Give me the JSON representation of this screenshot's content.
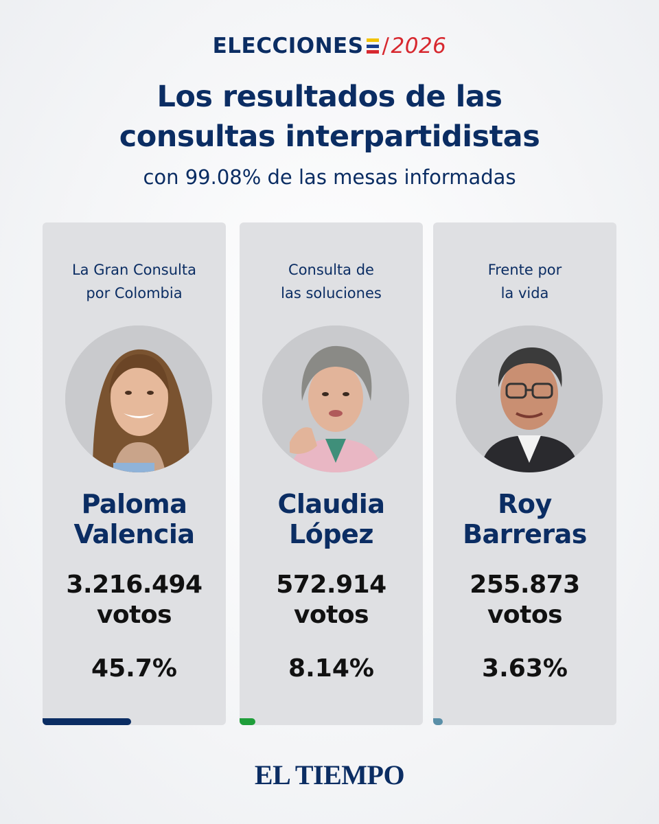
{
  "brand": {
    "word": "ELECCIONES",
    "slash": "/",
    "year": "2026",
    "flag_colors": [
      "#f2c300",
      "#1a3e8c",
      "#d7282f"
    ]
  },
  "header": {
    "title_line1": "Los resultados de las",
    "title_line2": "consultas interpartidistas",
    "subtitle": "con 99.08% de las mesas informadas"
  },
  "cards": [
    {
      "party_line1": "La Gran Consulta",
      "party_line2": "por Colombia",
      "name_line1": "Paloma",
      "name_line2": "Valencia",
      "votes": "3.216.494",
      "votes_unit": "votos",
      "percent": "45.7%",
      "share": 0.457,
      "bar_color": "#0b2d63",
      "photo": "portrait-woman-long-hair"
    },
    {
      "party_line1": "Consulta de",
      "party_line2": "las soluciones",
      "name_line1": "Claudia",
      "name_line2": "López",
      "votes": "572.914",
      "votes_unit": "votos",
      "percent": "8.14%",
      "share": 0.0814,
      "bar_color": "#1f9e3a",
      "photo": "portrait-woman-short-gray-hair"
    },
    {
      "party_line1": "Frente por",
      "party_line2": "la vida",
      "name_line1": "Roy",
      "name_line2": "Barreras",
      "votes": "255.873",
      "votes_unit": "votos",
      "percent": "3.63%",
      "share": 0.0363,
      "bar_color": "#5a8fa8",
      "photo": "portrait-man-glasses"
    }
  ],
  "footer": {
    "logo_text": "EL TIEMPO"
  }
}
